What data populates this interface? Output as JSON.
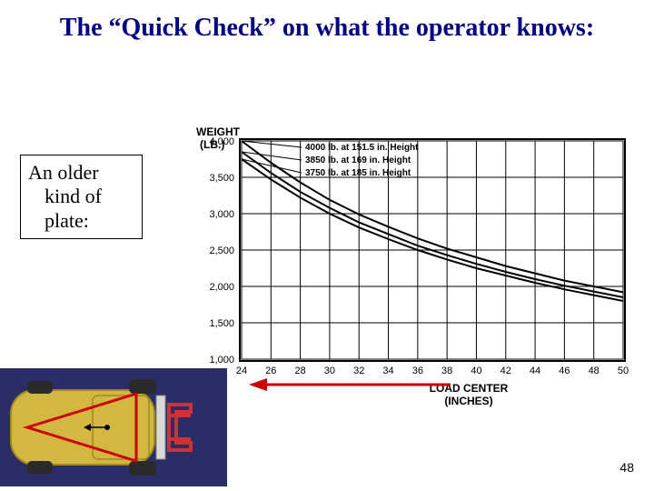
{
  "title": "The “Quick Check” on what the operator knows:",
  "annotation": {
    "line1": "An older",
    "line2": "kind of",
    "line3": "plate:"
  },
  "page_number": "48",
  "chart": {
    "type": "line",
    "y_axis_title_l1": "WEIGHT",
    "y_axis_title_l2": "(LB.)",
    "x_axis_title_l1": "LOAD CENTER",
    "x_axis_title_l2": "(INCHES)",
    "x_ticks": [
      "24",
      "26",
      "28",
      "30",
      "32",
      "34",
      "36",
      "38",
      "40",
      "42",
      "44",
      "46",
      "48",
      "50"
    ],
    "x_min": 24,
    "x_max": 50,
    "y_ticks": [
      "1,000",
      "1,500",
      "2,000",
      "2,500",
      "3,000",
      "3,500",
      "4,000"
    ],
    "y_min": 1000,
    "y_max": 4000,
    "line_color": "#000000",
    "grid_color": "#000000",
    "background_color": "#ffffff",
    "label_fontsize": 11,
    "axis_title_fontsize": 12,
    "callouts": [
      {
        "text": "4000 lb. at 151.5 in. Height",
        "y": 4000
      },
      {
        "text": "3850 lb. at 169 in. Height",
        "y": 3850
      },
      {
        "text": "3750 lb. at 185 in. Height",
        "y": 3750
      }
    ],
    "series": [
      {
        "points": [
          [
            24,
            4000
          ],
          [
            26,
            3700
          ],
          [
            28,
            3430
          ],
          [
            30,
            3190
          ],
          [
            32,
            2990
          ],
          [
            34,
            2820
          ],
          [
            36,
            2660
          ],
          [
            38,
            2520
          ],
          [
            40,
            2400
          ],
          [
            42,
            2280
          ],
          [
            44,
            2180
          ],
          [
            46,
            2080
          ],
          [
            48,
            2000
          ],
          [
            50,
            1920
          ]
        ]
      },
      {
        "points": [
          [
            24,
            3850
          ],
          [
            26,
            3560
          ],
          [
            28,
            3300
          ],
          [
            30,
            3080
          ],
          [
            32,
            2880
          ],
          [
            34,
            2720
          ],
          [
            36,
            2560
          ],
          [
            38,
            2430
          ],
          [
            40,
            2310
          ],
          [
            42,
            2200
          ],
          [
            44,
            2100
          ],
          [
            46,
            2010
          ],
          [
            48,
            1930
          ],
          [
            50,
            1850
          ]
        ]
      },
      {
        "points": [
          [
            24,
            3750
          ],
          [
            26,
            3470
          ],
          [
            28,
            3220
          ],
          [
            30,
            3000
          ],
          [
            32,
            2810
          ],
          [
            34,
            2650
          ],
          [
            36,
            2500
          ],
          [
            38,
            2370
          ],
          [
            40,
            2250
          ],
          [
            42,
            2150
          ],
          [
            44,
            2050
          ],
          [
            46,
            1960
          ],
          [
            48,
            1880
          ],
          [
            50,
            1800
          ]
        ]
      }
    ],
    "arrow_color": "#cc0000"
  },
  "forklift_diagram": {
    "body_color": "#d2b843",
    "body_stroke": "#a3881f",
    "wheel_color": "#2a2a2a",
    "triangle_color": "#cc0000",
    "fork_color": "#cc3333",
    "background": "#2b2d66",
    "type": "infographic"
  }
}
